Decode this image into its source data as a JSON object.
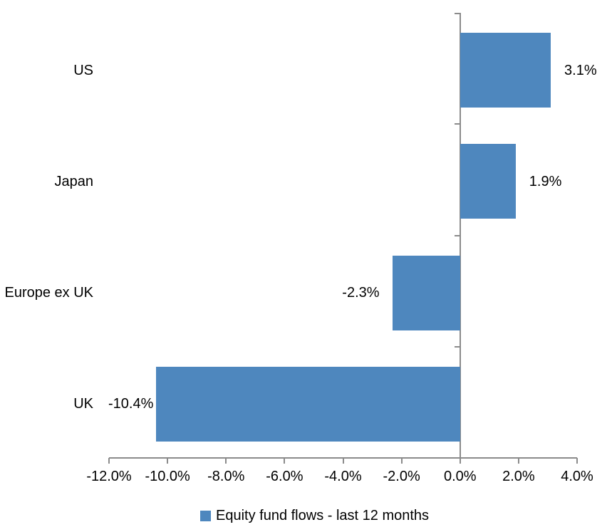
{
  "chart_data": {
    "type": "bar",
    "orientation": "horizontal",
    "categories": [
      "US",
      "Japan",
      "Europe ex UK",
      "UK"
    ],
    "values": [
      3.1,
      1.9,
      -2.3,
      -10.4
    ],
    "value_labels": [
      "3.1%",
      "1.9%",
      "-2.3%",
      "-10.4%"
    ],
    "series_name": "Equity fund flows - last 12 months",
    "xlim": [
      -12.0,
      4.0
    ],
    "x_ticks": [
      -12,
      -10,
      -8,
      -6,
      -4,
      -2,
      0,
      2,
      4
    ],
    "x_tick_labels": [
      "-12.0%",
      "-10.0%",
      "-8.0%",
      "-6.0%",
      "-4.0%",
      "-2.0%",
      "0.0%",
      "2.0%",
      "4.0%"
    ],
    "bar_color": "#4E87BE",
    "axis_color": "#8B8B8B",
    "text_color": "#000000",
    "grid": false,
    "legend": {
      "position": "bottom",
      "swatch_color": "#4E87BE",
      "label": "Equity fund flows - last 12 months"
    }
  }
}
